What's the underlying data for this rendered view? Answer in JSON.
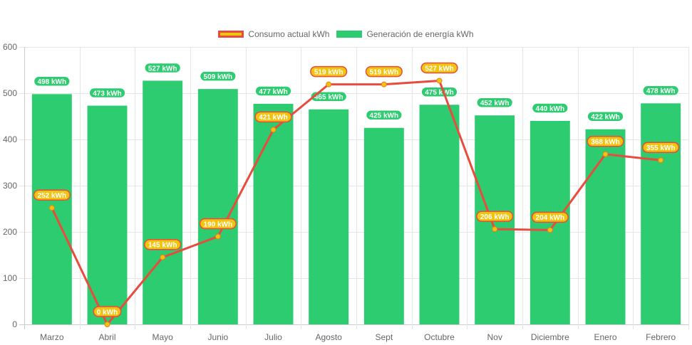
{
  "chart_data": {
    "type": "bar",
    "title": "",
    "xlabel": "",
    "ylabel": "",
    "ylim": [
      0,
      600
    ],
    "yticks": [
      0,
      100,
      200,
      300,
      400,
      500,
      600
    ],
    "grid": true,
    "legend_position": "top-center",
    "categories": [
      "Marzo",
      "Abril",
      "Mayo",
      "Junio",
      "Julio",
      "Agosto",
      "Sept",
      "Octubre",
      "Nov",
      "Diciembre",
      "Enero",
      "Febrero"
    ],
    "unit_suffix": " kWh",
    "series": [
      {
        "name": "Consumo actual kWh",
        "type": "line",
        "color": "#e74c3c",
        "point_color": "#f1c40f",
        "label_bg": "#f1c40f",
        "label_border": "#e74c3c",
        "values": [
          252,
          0,
          145,
          190,
          421,
          519,
          519,
          527,
          206,
          204,
          368,
          355
        ]
      },
      {
        "name": "Generación de energía kWh",
        "type": "bar",
        "color": "#2ecc71",
        "label_bg": "#2ecc71",
        "label_border": "#ffffff",
        "values": [
          498,
          473,
          527,
          509,
          477,
          465,
          425,
          475,
          452,
          440,
          422,
          478
        ]
      }
    ]
  },
  "legend": {
    "items": [
      {
        "label": "Consumo actual kWh",
        "fill": "#f1c40f",
        "border": "#e74c3c"
      },
      {
        "label": "Generación de energía kWh",
        "fill": "#2ecc71",
        "border": "#2ecc71"
      }
    ]
  }
}
